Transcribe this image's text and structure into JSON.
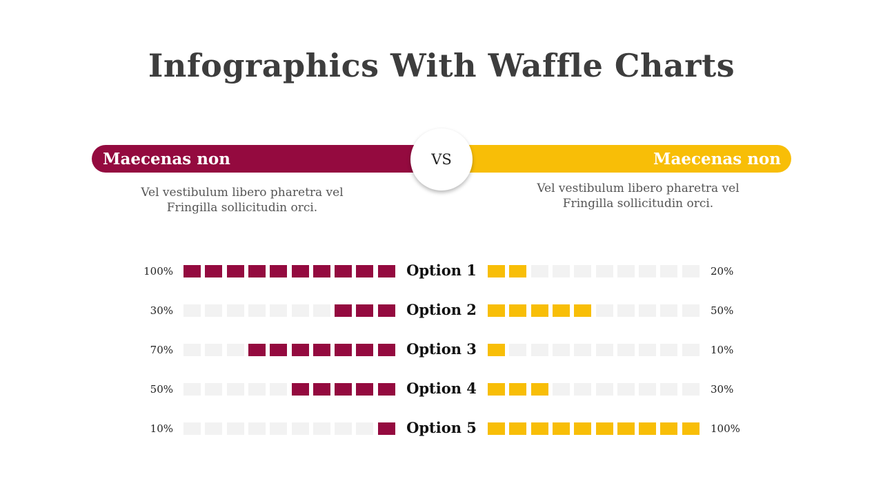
{
  "title": "Infographics With Waffle Charts",
  "left_panel": {
    "heading": "Maecenas non",
    "desc_line1": "Vel vestibulum libero pharetra vel",
    "desc_line2": "Fringilla sollicitudin orci."
  },
  "right_panel": {
    "heading": "Maecenas non",
    "desc_line1": "Vel vestibulum libero pharetra vel",
    "desc_line2": "Fringilla sollicitudin orci."
  },
  "vs_label": "VS",
  "colors": {
    "left_accent": "#940A3F",
    "right_accent": "#F8BE07",
    "empty_cell": "#F2F2F2"
  },
  "chart_data": {
    "type": "waffle",
    "cells_per_row": 10,
    "categories": [
      "Option 1",
      "Option 2",
      "Option 3",
      "Option 4",
      "Option 5"
    ],
    "series": [
      {
        "side": "left",
        "values": [
          100,
          30,
          70,
          50,
          10
        ],
        "labels": [
          "100%",
          "30%",
          "70%",
          "50%",
          "10%"
        ]
      },
      {
        "side": "right",
        "values": [
          20,
          50,
          10,
          30,
          100
        ],
        "labels": [
          "20%",
          "50%",
          "10%",
          "30%",
          "100%"
        ]
      }
    ]
  }
}
